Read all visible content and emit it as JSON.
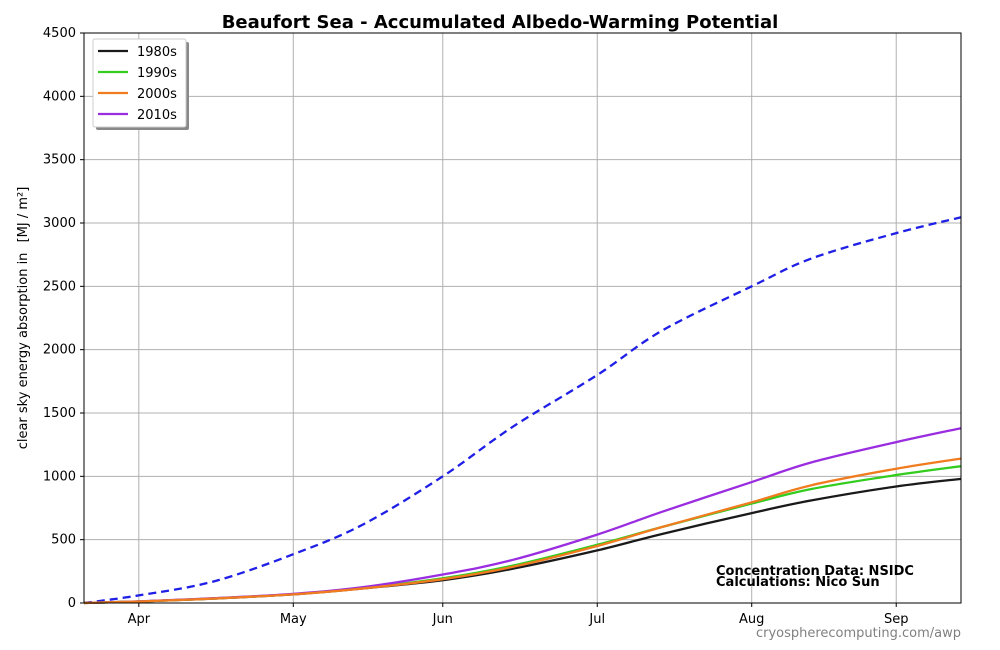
{
  "chart_data": {
    "type": "line",
    "title": "Beaufort Sea - Accumulated Albedo-Warming Potential",
    "ylabel": "clear sky energy absorption in",
    "ylabel_unit": "[MJ / m²]",
    "x_tick_labels": [
      "Apr",
      "May",
      "Jun",
      "Jul",
      "Aug",
      "Sep"
    ],
    "x_tick_days": [
      15,
      46,
      76,
      107,
      138,
      167
    ],
    "xlim": [
      4,
      180
    ],
    "ylim": [
      0,
      4500
    ],
    "y_ticks": [
      0,
      500,
      1000,
      1500,
      2000,
      2500,
      3000,
      3500,
      4000,
      4500
    ],
    "grid": true,
    "legend_position": "top-left",
    "series": [
      {
        "name": "1980s",
        "color": "#1a1a1a",
        "style": "solid",
        "x": [
          4,
          15,
          30,
          46,
          60,
          76,
          90,
          107,
          120,
          138,
          150,
          167,
          180
        ],
        "values": [
          0,
          12,
          35,
          68,
          115,
          180,
          270,
          415,
          545,
          710,
          810,
          920,
          980
        ]
      },
      {
        "name": "1990s",
        "color": "#33cc1f",
        "style": "solid",
        "x": [
          4,
          15,
          30,
          46,
          60,
          76,
          90,
          107,
          120,
          138,
          150,
          167,
          180
        ],
        "values": [
          0,
          12,
          36,
          70,
          118,
          195,
          295,
          460,
          600,
          785,
          900,
          1010,
          1080
        ]
      },
      {
        "name": "2000s",
        "color": "#f07c1f",
        "style": "solid",
        "x": [
          4,
          15,
          30,
          46,
          60,
          76,
          90,
          107,
          120,
          138,
          150,
          167,
          180
        ],
        "values": [
          0,
          12,
          35,
          68,
          115,
          188,
          285,
          450,
          600,
          795,
          930,
          1060,
          1140
        ]
      },
      {
        "name": "2010s",
        "color": "#9a2de0",
        "style": "solid",
        "x": [
          4,
          15,
          30,
          46,
          60,
          76,
          90,
          107,
          120,
          138,
          150,
          167,
          180
        ],
        "values": [
          0,
          13,
          38,
          72,
          125,
          225,
          340,
          540,
          720,
          955,
          1110,
          1270,
          1380
        ]
      },
      {
        "color": "#1f1fe6",
        "style": "dashed",
        "x": [
          4,
          15,
          30,
          46,
          60,
          76,
          90,
          107,
          120,
          138,
          150,
          167,
          180
        ],
        "values": [
          0,
          60,
          170,
          385,
          620,
          1000,
          1390,
          1800,
          2150,
          2500,
          2720,
          2920,
          3045
        ]
      }
    ],
    "annotations": [
      "Concentration Data: NSIDC",
      "Calculations: Nico Sun"
    ]
  },
  "footer": "cryospherecomputing.com/awp"
}
